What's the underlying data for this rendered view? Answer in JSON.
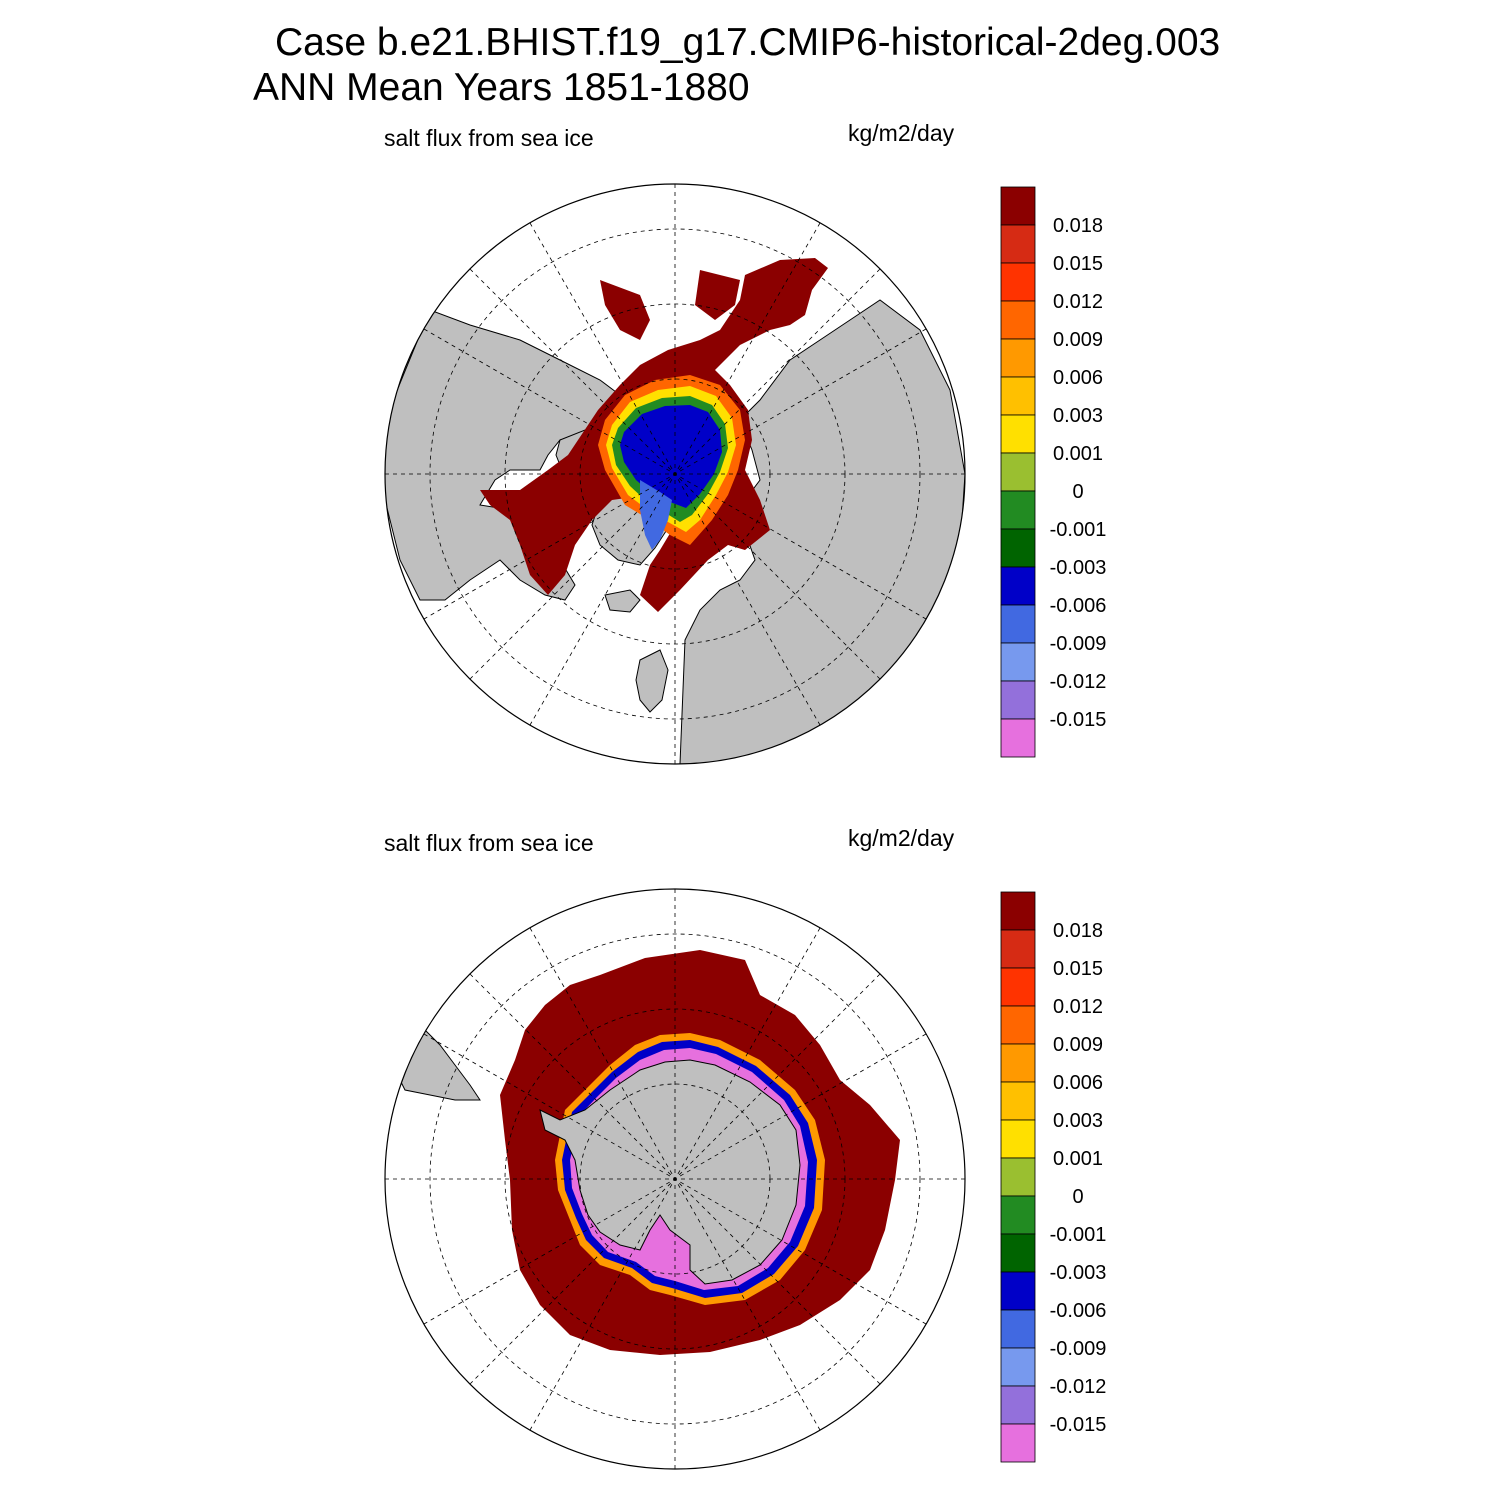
{
  "header": {
    "line1": "Case b.e21.BHIST.f19_g17.CMIP6-historical-2deg.003",
    "line2": "ANN Mean    Years 1851-1880"
  },
  "colors": {
    "land": "#bfbfbf",
    "scale": [
      "#8b0000",
      "#d62b14",
      "#ff3300",
      "#ff6600",
      "#ff9900",
      "#ffc000",
      "#ffe000",
      "#9abf30",
      "#228b22",
      "#006400",
      "#0000c8",
      "#4169e1",
      "#7799ee",
      "#9370db",
      "#e670de"
    ]
  },
  "panels": [
    {
      "id": "north",
      "variable": "salt flux from sea ice",
      "units": "kg/m2/day",
      "hemisphere": "Arctic (north polar stereographic)",
      "colorbar_labels": [
        "0.018",
        "0.015",
        "0.012",
        "0.009",
        "0.006",
        "0.003",
        "0.001",
        "0",
        "-0.001",
        "-0.003",
        "-0.006",
        "-0.009",
        "-0.012",
        "-0.015"
      ]
    },
    {
      "id": "south",
      "variable": "salt flux from sea ice",
      "units": "kg/m2/day",
      "hemisphere": "Antarctic (south polar stereographic)",
      "colorbar_labels": [
        "0.018",
        "0.015",
        "0.012",
        "0.009",
        "0.006",
        "0.003",
        "0.001",
        "0",
        "-0.001",
        "-0.003",
        "-0.006",
        "-0.009",
        "-0.012",
        "-0.015"
      ]
    }
  ]
}
